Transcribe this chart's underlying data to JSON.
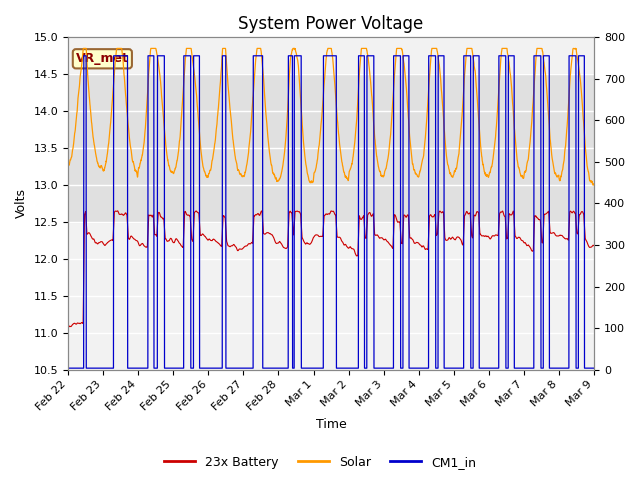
{
  "title": "System Power Voltage",
  "xlabel": "Time",
  "ylabel_left": "Volts",
  "ylim_left": [
    10.5,
    15.0
  ],
  "ylim_right": [
    0,
    800
  ],
  "yticks_left": [
    10.5,
    11.0,
    11.5,
    12.0,
    12.5,
    13.0,
    13.5,
    14.0,
    14.5,
    15.0
  ],
  "yticks_right": [
    0,
    100,
    200,
    300,
    400,
    500,
    600,
    700,
    800
  ],
  "background_color": "#ffffff",
  "plot_bg_color": "#f2f2f2",
  "grid_color": "#ffffff",
  "band_lower": 12.5,
  "band_upper": 14.5,
  "band_color": "#e0e0e0",
  "vr_met_label": "VR_met",
  "legend_labels": [
    "23x Battery",
    "Solar",
    "CM1_in"
  ],
  "legend_colors": [
    "#cc0000",
    "#ff9900",
    "#0000cc"
  ],
  "title_fontsize": 12,
  "axis_fontsize": 9,
  "tick_fontsize": 8,
  "xtick_labels": [
    "Feb 22",
    "Feb 23",
    "Feb 24",
    "Feb 25",
    "Feb 26",
    "Feb 27",
    "Feb 28",
    "Mar 1",
    "Mar 2",
    "Mar 3",
    "Mar 4",
    "Mar 5",
    "Mar 6",
    "Mar 7",
    "Mar 8",
    "Mar 9"
  ],
  "num_days": 15,
  "num_points": 3000
}
